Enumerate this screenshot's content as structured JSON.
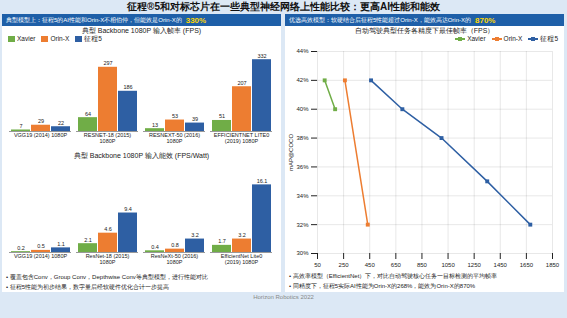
{
  "title": "征程®5和对标芯片在一些典型神经网络上性能比较：更高AI性能和能效",
  "annotations": [
    "Horizon Robotics 2022"
  ],
  "chart_data": [
    {
      "type": "bar",
      "title": "典型 Backbone 1080P 输入帧率 (FPS)",
      "categories": [
        "VGG19 (2014) 1080P",
        "RESNET-18 (2015)\n1080P",
        "RESNEXT-50 (2016)\n1080P",
        "EFFICIENTNET LITE0\n(2019) 1080P"
      ],
      "series": [
        {
          "name": "Xavier",
          "color": "#70ad47",
          "values": [
            7,
            64,
            13,
            51
          ]
        },
        {
          "name": "Orin-X",
          "color": "#ed7d31",
          "values": [
            29,
            297,
            53,
            207
          ]
        },
        {
          "name": "征程5",
          "color": "#2e5fa3",
          "values": [
            22,
            186,
            39,
            332
          ]
        }
      ],
      "ylim": [
        0,
        370
      ],
      "tick_labels": "x",
      "data_labels": true,
      "legend": "upper left",
      "annotations": [
        "典型模型上：征程5的AI性能和Orin-X不相伯仲，但能效是Orin-X的",
        "330%"
      ]
    },
    {
      "type": "bar",
      "title": "典型 Backbone 1080P 输入能效 (FPS/Watt)",
      "categories": [
        "VGG19 (2014) 1080P",
        "ResNet-18 (2015)\n1080P",
        "ResNeXt-50 (2016)\n1080P",
        "EfficientNet Lite0\n(2019) 1080P"
      ],
      "series": [
        {
          "name": "Xavier",
          "color": "#70ad47",
          "values": [
            0.2,
            2.1,
            0.4,
            1.7
          ]
        },
        {
          "name": "Orin-X",
          "color": "#ed7d31",
          "values": [
            0.5,
            4.6,
            0.8,
            3.2
          ]
        },
        {
          "name": "征程5",
          "color": "#2e5fa3",
          "values": [
            1.1,
            9.4,
            3.2,
            16.1
          ]
        }
      ],
      "ylim": [
        0,
        20
      ],
      "tick_labels": "x",
      "data_labels": true,
      "annotations": [
        "• 覆盖包含Conv，Group Conv，Depthwise Conv等典型模型，进行性能对比",
        "• 征程5性能为初步结果，数字量后经软硬件优化合计一步提高"
      ]
    },
    {
      "type": "line",
      "title": "自动驾驶典型任务各精度下最佳帧率（FPS）",
      "ylabel": "mAP@COCO",
      "series": [
        {
          "name": "Xavier",
          "color": "#70ad47",
          "x": [
            105,
            185
          ],
          "values": [
            42.0,
            40.0
          ]
        },
        {
          "name": "Orin-X",
          "color": "#ed7d31",
          "x": [
            260,
            435
          ],
          "values": [
            42.0,
            32.0
          ]
        },
        {
          "name": "征程5",
          "color": "#2e5fa3",
          "x": [
            460,
            700,
            1000,
            1350,
            1680
          ],
          "values": [
            42.0,
            40.0,
            38.0,
            35.0,
            32.0
          ]
        }
      ],
      "xlim": [
        50,
        1850
      ],
      "xticks": [
        50,
        250,
        450,
        650,
        850,
        1050,
        1250,
        1450,
        1650,
        1850
      ],
      "ylim": [
        30,
        44
      ],
      "yticks": [
        {
          "value": 30,
          "label": "30%"
        },
        {
          "value": 32,
          "label": "32%"
        },
        {
          "value": 34,
          "label": "34%"
        },
        {
          "value": 36,
          "label": "36%"
        },
        {
          "value": 38,
          "label": "38%"
        },
        {
          "value": 40,
          "label": "40%"
        },
        {
          "value": 42,
          "label": "42%"
        },
        {
          "value": 44,
          "label": "44%"
        }
      ],
      "marker": "square",
      "grid": true,
      "legend": "upper right",
      "annotations": [
        "优选高效模型：软硬结合后征程5性能超过Orin-X，能效高达Orin-X的",
        "870%",
        "• 高效率模型（EfficientNet）下，对比自动驾驶核心任务一目标检测的平均帧率",
        "• 同精度下，征程5实际AI性能为Orin-X的268%，能效为Orin-X的870%"
      ]
    }
  ]
}
